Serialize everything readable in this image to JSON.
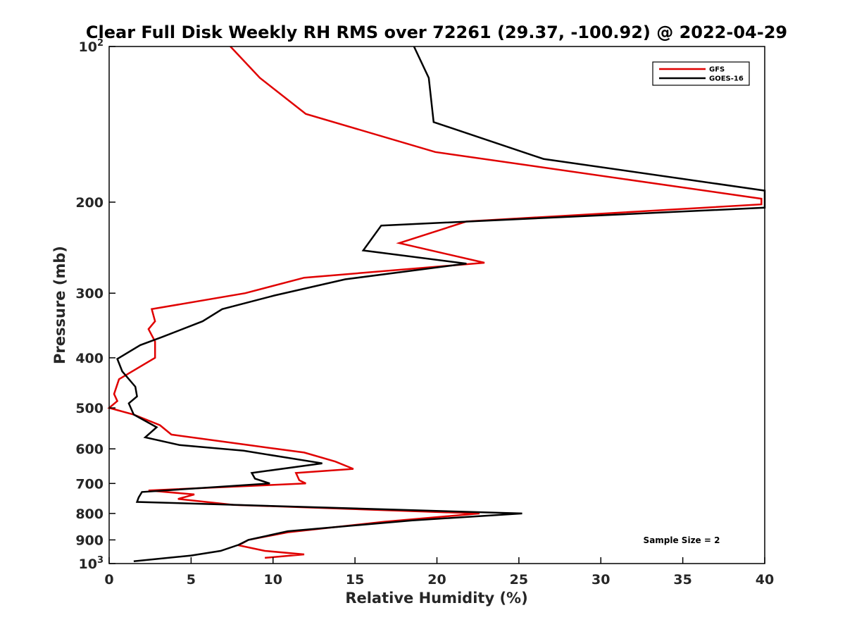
{
  "chart_data": {
    "type": "line",
    "title": "Clear Full Disk Weekly RH RMS over 72261 (29.37, -100.92) @ 2022-04-29",
    "xlabel": "Relative Humidity (%)",
    "ylabel": "Pressure (mb)",
    "xlim": [
      0,
      40
    ],
    "ylim": [
      100,
      1000
    ],
    "y_scale": "log",
    "y_reversed": true,
    "x_ticks": [
      "0",
      "5",
      "10",
      "15",
      "20",
      "25",
      "30",
      "35",
      "40"
    ],
    "y_ticks": [
      {
        "value": 100,
        "base": "10",
        "exp": "2"
      },
      {
        "value": 200,
        "label": "200"
      },
      {
        "value": 300,
        "label": "300"
      },
      {
        "value": 400,
        "label": "400"
      },
      {
        "value": 500,
        "label": "500"
      },
      {
        "value": 600,
        "label": "600"
      },
      {
        "value": 700,
        "label": "700"
      },
      {
        "value": 800,
        "label": "800"
      },
      {
        "value": 900,
        "label": "900"
      },
      {
        "value": 1000,
        "base": "10",
        "exp": "3"
      }
    ],
    "grid": false,
    "legend_position": "top-right",
    "annotation": "Sample Size = 2",
    "series": [
      {
        "name": "GFS",
        "color": "#e00000",
        "points": [
          [
            7.4,
            100
          ],
          [
            9.2,
            115
          ],
          [
            12.0,
            135
          ],
          [
            19.9,
            160
          ],
          [
            39.8,
            197
          ],
          [
            39.8,
            202
          ],
          [
            21.8,
            218
          ],
          [
            17.7,
            240
          ],
          [
            22.9,
            262
          ],
          [
            11.9,
            280
          ],
          [
            8.3,
            300
          ],
          [
            2.6,
            322
          ],
          [
            2.8,
            340
          ],
          [
            2.4,
            352
          ],
          [
            2.8,
            372
          ],
          [
            2.8,
            400
          ],
          [
            0.6,
            440
          ],
          [
            0.3,
            470
          ],
          [
            0.5,
            485
          ],
          [
            0.0,
            500
          ],
          [
            1.5,
            515
          ],
          [
            3.1,
            540
          ],
          [
            3.8,
            563
          ],
          [
            8.5,
            590
          ],
          [
            11.9,
            610
          ],
          [
            13.8,
            635
          ],
          [
            14.9,
            656
          ],
          [
            11.4,
            668
          ],
          [
            11.6,
            690
          ],
          [
            12.0,
            700
          ],
          [
            2.4,
            722
          ],
          [
            5.2,
            735
          ],
          [
            4.2,
            750
          ],
          [
            7.6,
            770
          ],
          [
            22.6,
            800
          ],
          [
            16.8,
            830
          ],
          [
            10.9,
            870
          ],
          [
            8.5,
            900
          ],
          [
            7.9,
            922
          ],
          [
            9.5,
            945
          ],
          [
            11.9,
            960
          ],
          [
            9.5,
            975
          ]
        ]
      },
      {
        "name": "GOES-16",
        "color": "#000000",
        "points": [
          [
            18.6,
            100
          ],
          [
            19.5,
            115
          ],
          [
            19.8,
            140
          ],
          [
            26.5,
            165
          ],
          [
            40.0,
            190
          ],
          [
            40.0,
            205
          ],
          [
            16.6,
            222
          ],
          [
            15.5,
            248
          ],
          [
            21.8,
            263
          ],
          [
            14.4,
            282
          ],
          [
            10.1,
            303
          ],
          [
            6.9,
            322
          ],
          [
            5.7,
            340
          ],
          [
            3.2,
            365
          ],
          [
            1.9,
            378
          ],
          [
            0.5,
            402
          ],
          [
            0.8,
            425
          ],
          [
            1.6,
            455
          ],
          [
            1.7,
            475
          ],
          [
            1.2,
            490
          ],
          [
            1.5,
            515
          ],
          [
            2.9,
            545
          ],
          [
            2.2,
            570
          ],
          [
            4.3,
            590
          ],
          [
            8.2,
            605
          ],
          [
            13.0,
            640
          ],
          [
            8.7,
            668
          ],
          [
            8.9,
            685
          ],
          [
            9.8,
            700
          ],
          [
            2.0,
            727
          ],
          [
            1.8,
            745
          ],
          [
            1.7,
            760
          ],
          [
            25.2,
            800
          ],
          [
            18.5,
            825
          ],
          [
            10.9,
            866
          ],
          [
            8.5,
            900
          ],
          [
            7.9,
            920
          ],
          [
            6.8,
            945
          ],
          [
            5.0,
            965
          ],
          [
            1.5,
            990
          ]
        ]
      }
    ]
  }
}
